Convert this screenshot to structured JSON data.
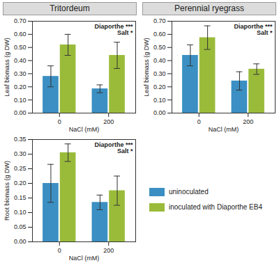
{
  "chart_data": [
    {
      "type": "bar",
      "title": "Tritordeum",
      "x_label": "NaCl (mM)",
      "y_label": "Leaf biomass (g DW)",
      "annotations": [
        "Diaporthe ***",
        "Salt *"
      ],
      "categories": [
        "0",
        "200"
      ],
      "series": [
        {
          "name": "uninoculated",
          "color": "#3b8fc2",
          "values": [
            0.28,
            0.185
          ],
          "errors": [
            0.08,
            0.03
          ]
        },
        {
          "name": "inoculated with Diaporthe EB4",
          "color": "#9abb3a",
          "values": [
            0.52,
            0.44
          ],
          "errors": [
            0.08,
            0.1
          ]
        }
      ],
      "ylim": [
        0,
        0.7
      ],
      "yticks": [
        {
          "value": 0,
          "label": "0.00"
        },
        {
          "value": 0.1,
          "label": "0.10"
        },
        {
          "value": 0.2,
          "label": "0.20"
        },
        {
          "value": 0.3,
          "label": "0.30"
        },
        {
          "value": 0.4,
          "label": "0.40"
        },
        {
          "value": 0.5,
          "label": "0.50"
        },
        {
          "value": 0.6,
          "label": "0.60"
        },
        {
          "value": 0.7,
          "label": "0.70"
        }
      ]
    },
    {
      "type": "bar",
      "title": "Perennial ryegrass",
      "x_label": "NaCl (mM)",
      "y_label": "Leaf biomass (g DW)",
      "annotations": [
        "Diaporthe ***",
        "Salt *"
      ],
      "categories": [
        "0",
        "200"
      ],
      "series": [
        {
          "name": "uninoculated",
          "color": "#3b8fc2",
          "values": [
            0.44,
            0.245
          ],
          "errors": [
            0.08,
            0.07
          ]
        },
        {
          "name": "inoculated with Diaporthe EB4",
          "color": "#9abb3a",
          "values": [
            0.575,
            0.335
          ],
          "errors": [
            0.09,
            0.04
          ]
        }
      ],
      "ylim": [
        0,
        0.7
      ],
      "yticks": [
        {
          "value": 0,
          "label": "0.00"
        },
        {
          "value": 0.1,
          "label": "0.10"
        },
        {
          "value": 0.2,
          "label": "0.20"
        },
        {
          "value": 0.3,
          "label": "0.30"
        },
        {
          "value": 0.4,
          "label": "0.40"
        },
        {
          "value": 0.5,
          "label": "0.50"
        },
        {
          "value": 0.6,
          "label": "0.60"
        },
        {
          "value": 0.7,
          "label": "0.70"
        }
      ]
    },
    {
      "type": "bar",
      "legend": "right",
      "x_label": "NaCl (mM)",
      "y_label": "Root biomass (g DW)",
      "annotations": [
        "Diaporthe ***",
        "Salt *"
      ],
      "categories": [
        "0",
        "200"
      ],
      "series": [
        {
          "name": "uninoculated",
          "color": "#3b8fc2",
          "values": [
            0.2,
            0.135
          ],
          "errors": [
            0.065,
            0.025
          ]
        },
        {
          "name": "inoculated with Diaporthe EB4",
          "color": "#9abb3a",
          "values": [
            0.305,
            0.175
          ],
          "errors": [
            0.03,
            0.05
          ]
        }
      ],
      "ylim": [
        0,
        0.35
      ],
      "yticks": [
        {
          "value": 0,
          "label": "0.00"
        },
        {
          "value": 0.05,
          "label": "0.05"
        },
        {
          "value": 0.1,
          "label": "0.10"
        },
        {
          "value": 0.15,
          "label": "0.15"
        },
        {
          "value": 0.2,
          "label": "0.20"
        },
        {
          "value": 0.25,
          "label": "0.25"
        },
        {
          "value": 0.3,
          "label": "0.30"
        },
        {
          "value": 0.35,
          "label": "0.35"
        }
      ]
    }
  ]
}
